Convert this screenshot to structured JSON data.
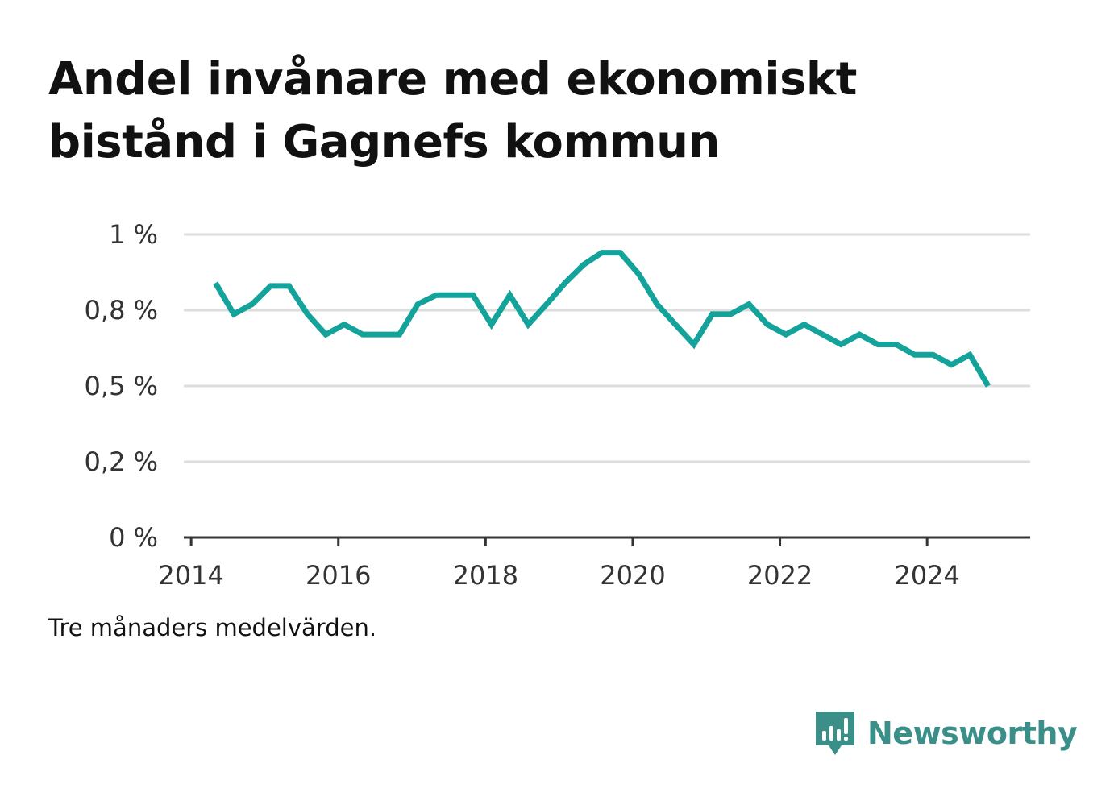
{
  "title": "Andel invånare med ekonomiskt bistånd i Gagnefs kommun",
  "note": "Tre månaders medelvärden.",
  "brand": {
    "name": "Newsworthy",
    "logo_icon": "newsworthy-logo-icon",
    "color": "#3a8f89"
  },
  "colors": {
    "line": "#14a39a",
    "grid": "#dddddd",
    "axis": "#333333"
  },
  "chart_data": {
    "type": "line",
    "title": "Andel invånare med ekonomiskt bistånd i Gagnefs kommun",
    "xlabel": "",
    "ylabel": "",
    "x_ticks": [
      2014,
      2016,
      2018,
      2020,
      2022,
      2024
    ],
    "x_tick_labels": [
      "2014",
      "2016",
      "2018",
      "2020",
      "2022",
      "2024"
    ],
    "y_ticks": [
      0,
      0.25,
      0.5,
      0.75,
      1
    ],
    "y_tick_labels": [
      "0 %",
      "0,2 %",
      "0,5 %",
      "0,8 %",
      "1 %"
    ],
    "xlim": [
      2013.9,
      2025.4
    ],
    "ylim": [
      0,
      1
    ],
    "grid": true,
    "series": [
      {
        "color": "#14a39a",
        "x": [
          2014.33,
          2014.58,
          2014.83,
          2015.08,
          2015.33,
          2015.58,
          2015.83,
          2016.08,
          2016.33,
          2016.58,
          2016.83,
          2017.08,
          2017.33,
          2017.58,
          2017.83,
          2018.08,
          2018.33,
          2018.58,
          2018.83,
          2019.08,
          2019.33,
          2019.58,
          2019.83,
          2020.08,
          2020.33,
          2020.58,
          2020.83,
          2021.08,
          2021.33,
          2021.58,
          2021.83,
          2022.08,
          2022.33,
          2022.58,
          2022.83,
          2023.08,
          2023.33,
          2023.58,
          2023.83,
          2024.08,
          2024.33,
          2024.58,
          2024.83
        ],
        "y": [
          0.84,
          0.737,
          0.77,
          0.83,
          0.83,
          0.737,
          0.67,
          0.703,
          0.67,
          0.67,
          0.67,
          0.77,
          0.8,
          0.8,
          0.8,
          0.703,
          0.8,
          0.703,
          0.77,
          0.84,
          0.9,
          0.94,
          0.94,
          0.87,
          0.77,
          0.703,
          0.637,
          0.737,
          0.737,
          0.77,
          0.703,
          0.67,
          0.703,
          0.67,
          0.637,
          0.67,
          0.637,
          0.637,
          0.603,
          0.603,
          0.57,
          0.603,
          0.5
        ]
      }
    ]
  }
}
